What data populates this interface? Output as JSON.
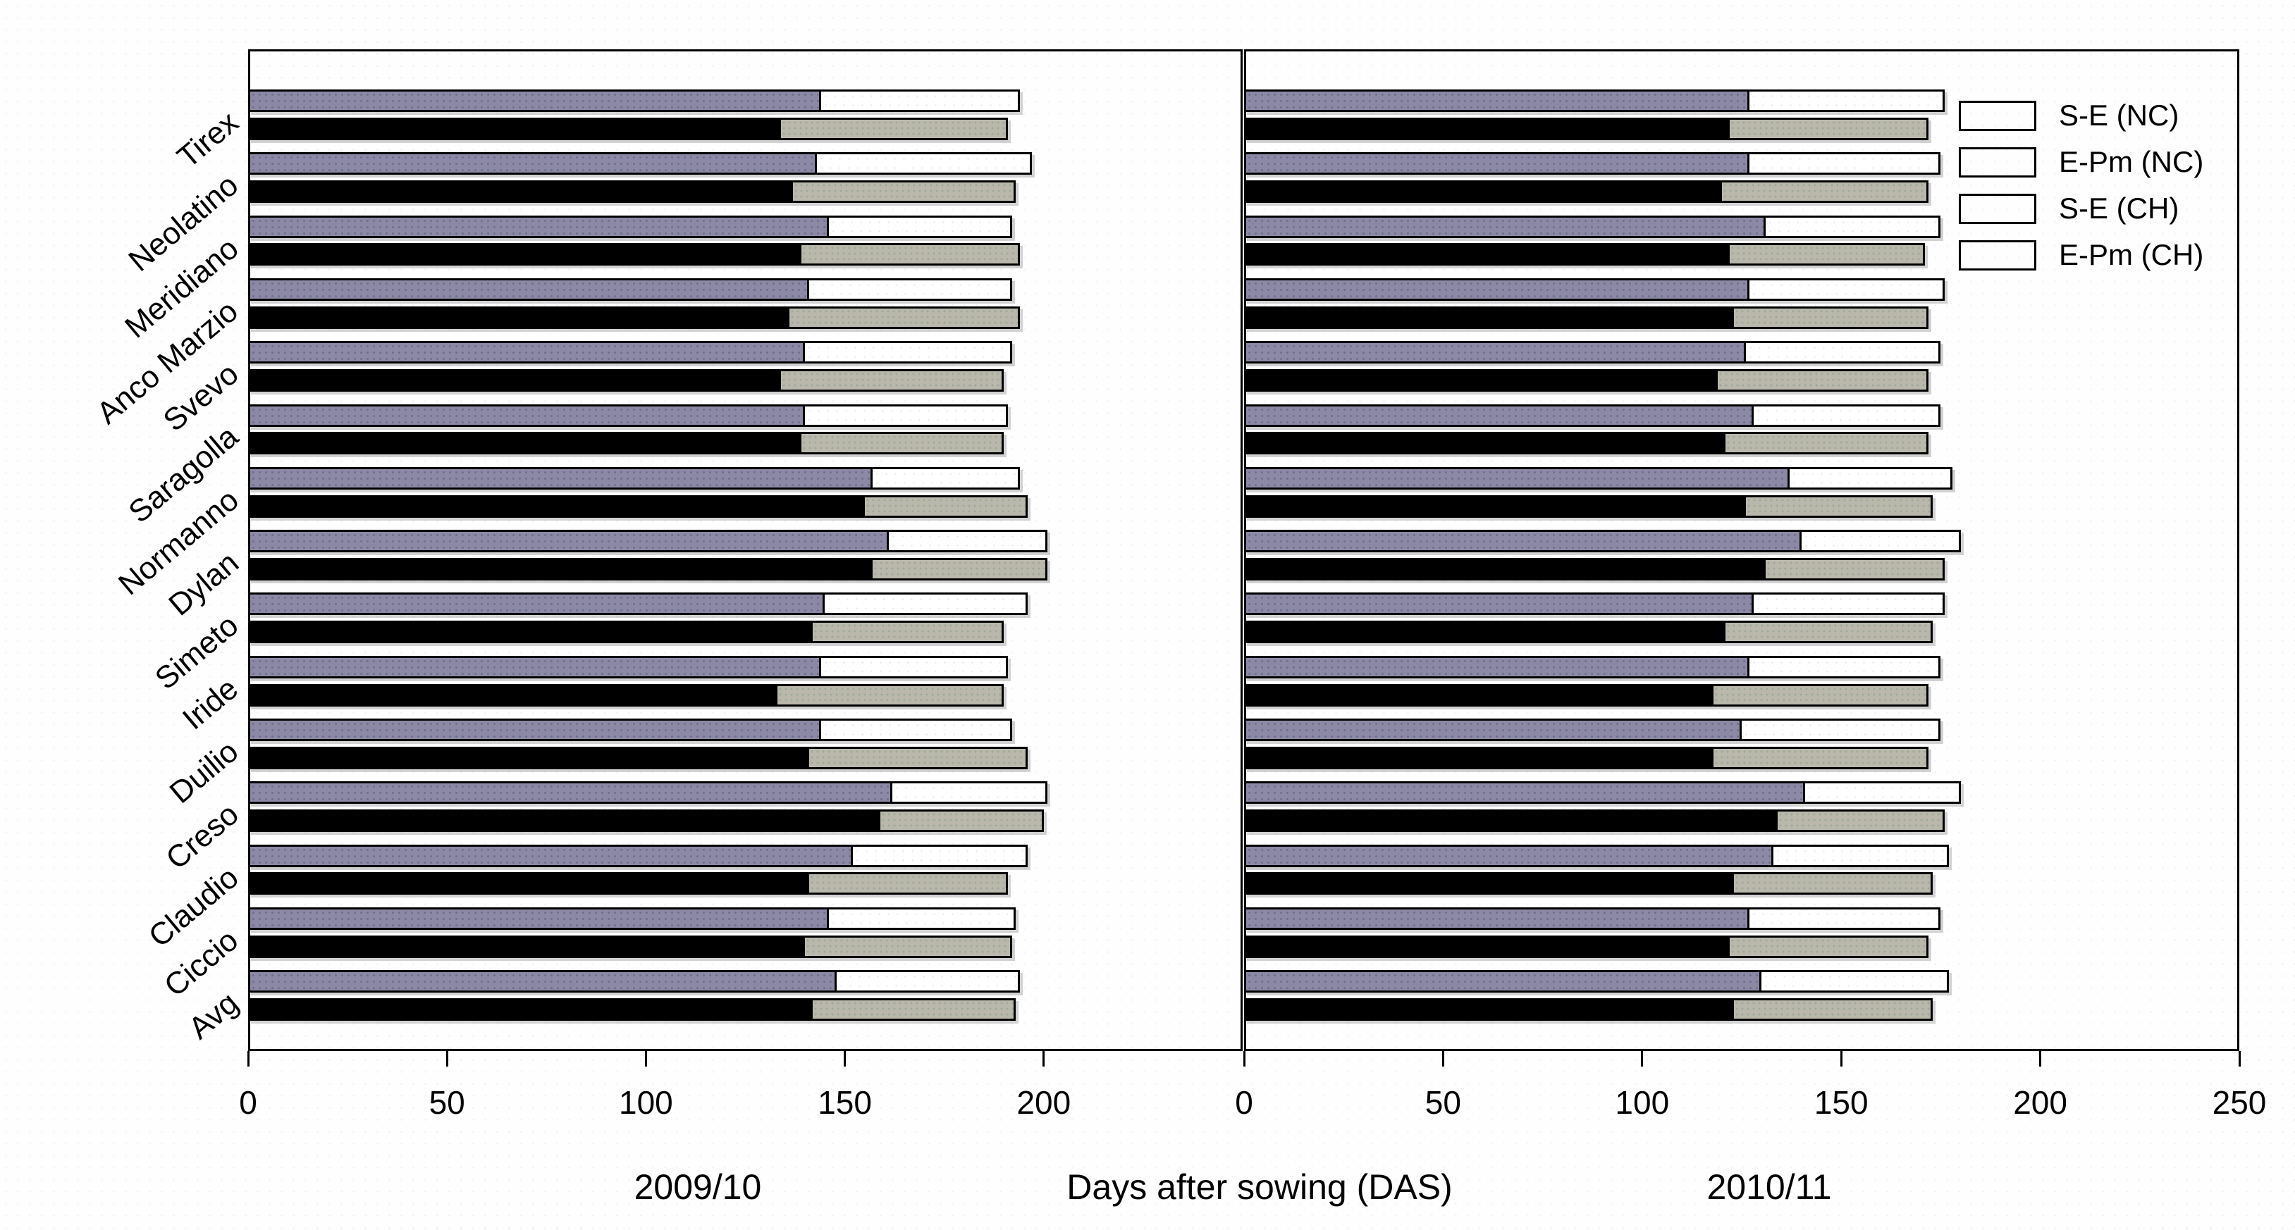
{
  "axis": {
    "x_label": "Days after sowing (DAS)",
    "left_season": "2009/10",
    "right_season": "2010/11"
  },
  "legend": [
    {
      "label": "S-E (NC)",
      "color": "#8b89a5",
      "texture": "tex-slate"
    },
    {
      "label": "E-Pm (NC)",
      "color": "#ffffff",
      "texture": "tex-white"
    },
    {
      "label": "S-E (CH)",
      "color": "#000000",
      "texture": "tex-black"
    },
    {
      "label": "E-Pm (CH)",
      "color": "#b9b8ab",
      "texture": "tex-gray"
    }
  ],
  "colors": {
    "se_nc": "#8b89a5",
    "epm_nc": "#ffffff",
    "se_ch": "#000000",
    "epm_ch": "#b9b8ab",
    "outline": "#000000"
  },
  "chart_data": {
    "type": "bar",
    "orientation": "horizontal",
    "stacked": true,
    "grid": false,
    "legend_position": "top-right",
    "xlabel": "Days after sowing (DAS)",
    "categories": [
      "Tirex",
      "Neolatino",
      "Meridiano",
      "Anco Marzio",
      "Svevo",
      "Saragolla",
      "Normanno",
      "Dylan",
      "Simeto",
      "Iride",
      "Duilio",
      "Creso",
      "Claudio",
      "Ciccio",
      "Avg"
    ],
    "bars_per_category": [
      "NC",
      "CH"
    ],
    "panels": [
      {
        "season": "2009/10",
        "x_range": [
          0,
          250
        ],
        "x_ticks": [
          0,
          50,
          100,
          150,
          200
        ],
        "series": [
          {
            "name": "S-E (NC)",
            "values": [
              144,
              143,
              146,
              141,
              140,
              140,
              157,
              161,
              145,
              144,
              144,
              162,
              152,
              146,
              148
            ]
          },
          {
            "name": "E-Pm (NC)",
            "values": [
              50,
              54,
              46,
              51,
              52,
              51,
              37,
              40,
              51,
              47,
              48,
              39,
              44,
              47,
              46
            ]
          },
          {
            "name": "S-E (CH)",
            "values": [
              134,
              137,
              139,
              136,
              134,
              139,
              155,
              157,
              142,
              133,
              141,
              159,
              141,
              140,
              142
            ]
          },
          {
            "name": "E-Pm (CH)",
            "values": [
              57,
              56,
              55,
              58,
              56,
              51,
              41,
              44,
              48,
              57,
              55,
              41,
              50,
              52,
              51
            ]
          }
        ]
      },
      {
        "season": "2010/11",
        "x_range": [
          0,
          250
        ],
        "x_ticks": [
          0,
          50,
          100,
          150,
          200,
          250
        ],
        "series": [
          {
            "name": "S-E (NC)",
            "values": [
              127,
              127,
              131,
              127,
              126,
              128,
              137,
              140,
              128,
              127,
              125,
              141,
              133,
              127,
              130
            ]
          },
          {
            "name": "E-Pm (NC)",
            "values": [
              49,
              48,
              44,
              49,
              49,
              47,
              41,
              40,
              48,
              48,
              50,
              39,
              44,
              48,
              47
            ]
          },
          {
            "name": "S-E (CH)",
            "values": [
              122,
              120,
              122,
              123,
              119,
              121,
              126,
              131,
              121,
              118,
              118,
              134,
              123,
              122,
              123
            ]
          },
          {
            "name": "E-Pm (CH)",
            "values": [
              50,
              52,
              49,
              49,
              53,
              51,
              47,
              45,
              52,
              54,
              54,
              42,
              50,
              50,
              50
            ]
          }
        ]
      }
    ]
  }
}
